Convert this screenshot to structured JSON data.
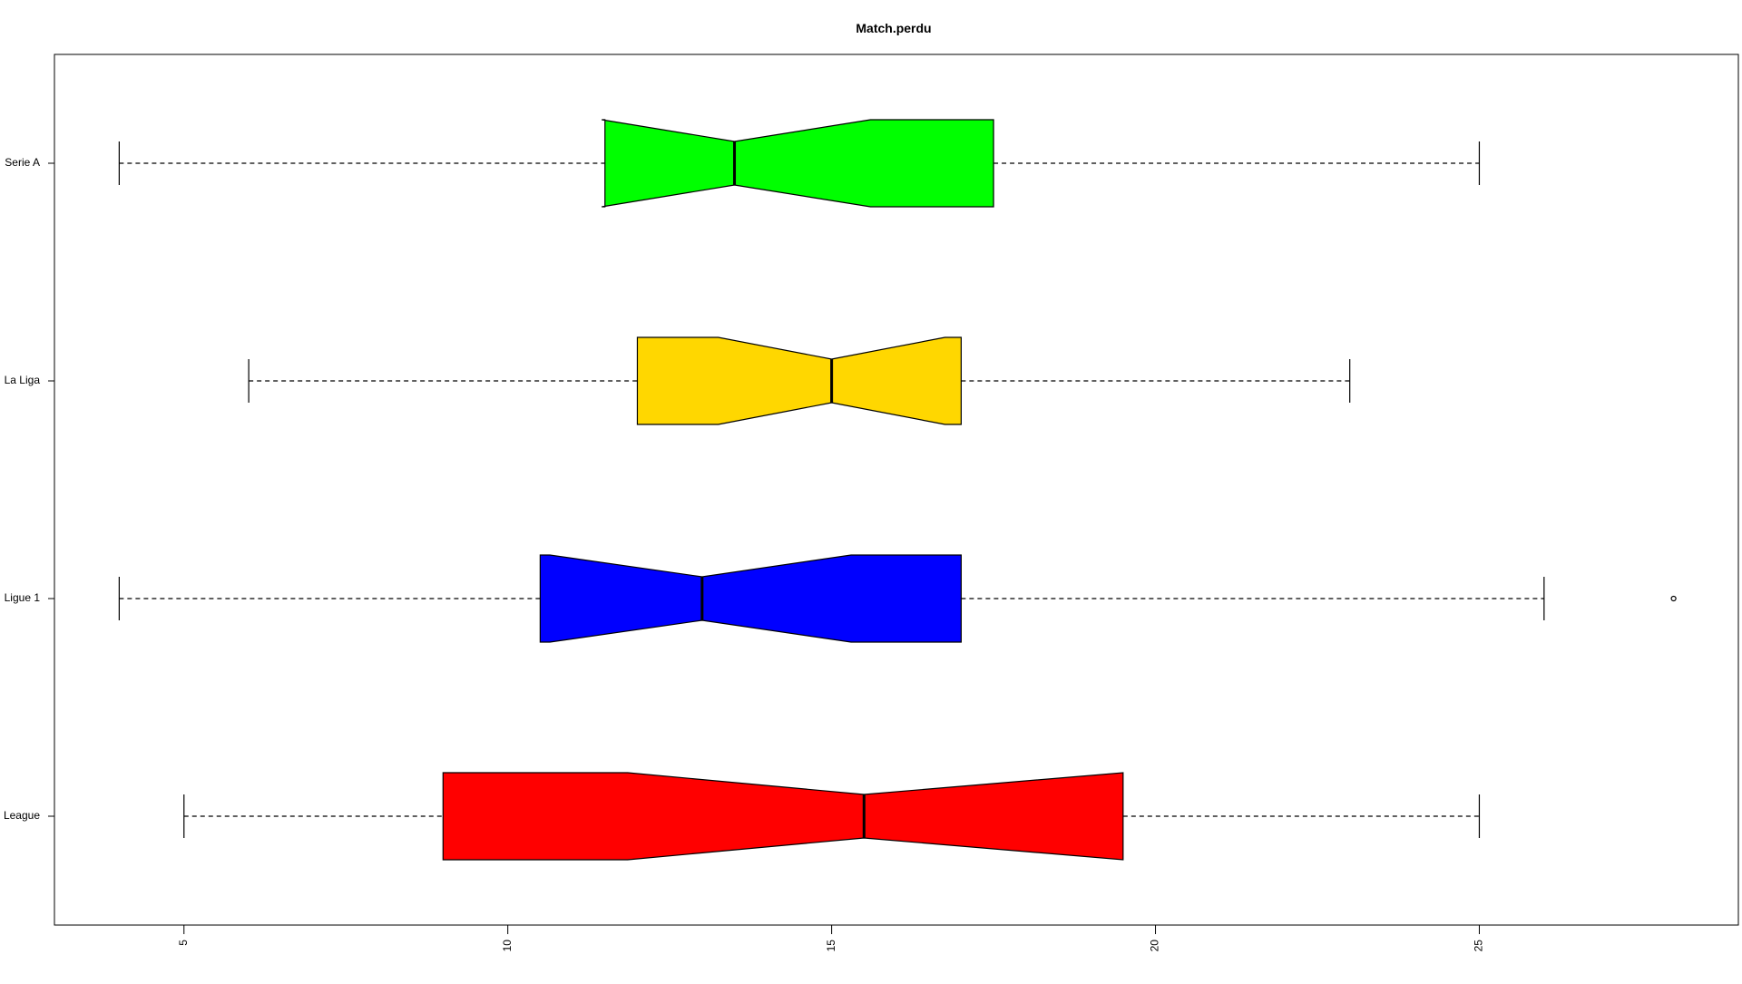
{
  "chart_data": {
    "type": "boxplot",
    "orientation": "horizontal",
    "notched": true,
    "title": "Match.perdu",
    "xlabel": "",
    "ylabel": "",
    "xlim": [
      3,
      29
    ],
    "x_ticks": [
      5,
      10,
      15,
      20,
      25
    ],
    "x_tick_labels": [
      "5",
      "10",
      "15",
      "20",
      "25"
    ],
    "categories": [
      "League",
      "Ligue 1",
      "La Liga",
      "Serie A"
    ],
    "boxes": [
      {
        "label": "League",
        "color": "#ff0000",
        "min": 5,
        "q1": 9,
        "median": 15.5,
        "q3": 19.5,
        "max": 25,
        "notch_low": 11.85,
        "notch_high": 19.5,
        "outliers": []
      },
      {
        "label": "Ligue 1",
        "color": "#0000ff",
        "min": 4,
        "q1": 10.5,
        "median": 13,
        "q3": 17,
        "max": 26,
        "notch_low": 10.65,
        "notch_high": 15.3,
        "outliers": [
          28
        ]
      },
      {
        "label": "La Liga",
        "color": "#ffd700",
        "min": 6,
        "q1": 12,
        "median": 15,
        "q3": 17,
        "max": 23,
        "notch_low": 13.25,
        "notch_high": 16.75,
        "outliers": []
      },
      {
        "label": "Serie A",
        "color": "#00ff00",
        "min": 4,
        "q1": 11.5,
        "median": 13.5,
        "q3": 17.5,
        "max": 25,
        "notch_low": 11.45,
        "notch_high": 15.6,
        "outliers": []
      }
    ]
  }
}
